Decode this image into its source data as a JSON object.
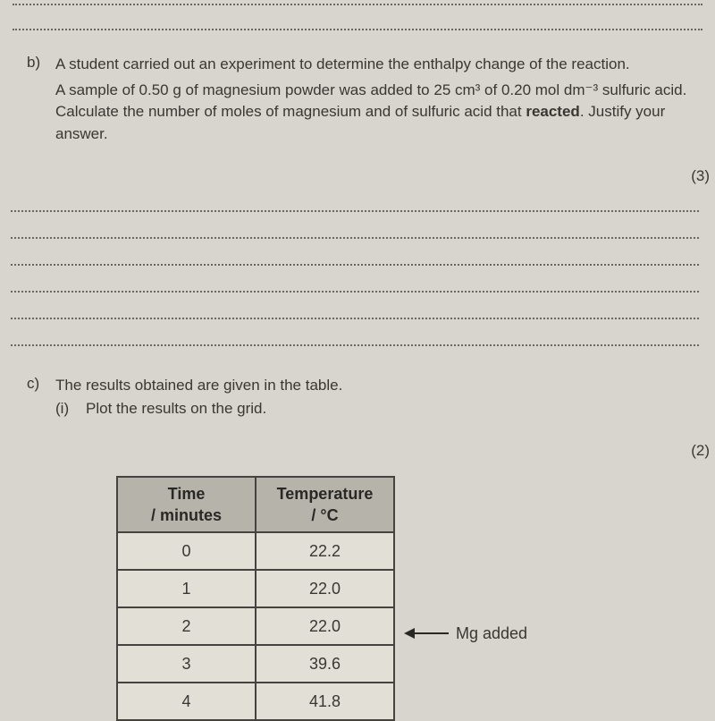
{
  "top_dotted_count": 2,
  "question_b": {
    "label": "b)",
    "line1": "A student carried out an experiment to determine the enthalpy change of the reaction.",
    "line2": "A sample of 0.50 g of magnesium powder was added to 25 cm³ of 0.20 mol dm⁻³ sulfuric acid. Calculate the number of moles of magnesium and of sulfuric acid that ",
    "bold_word": "reacted",
    "line2_end": ".",
    "line3": "Justify your answer.",
    "marks": "(3)",
    "answer_line_count": 6
  },
  "question_c": {
    "label": "c)",
    "text": "The results obtained are given in the table.",
    "sub_label": "(i)",
    "sub_text": "Plot the results on the grid.",
    "marks": "(2)"
  },
  "table": {
    "header1_line1": "Time",
    "header1_line2": "/ minutes",
    "header2_line1": "Temperature",
    "header2_line2": "/ °C",
    "rows": [
      {
        "time": "0",
        "temp": "22.2"
      },
      {
        "time": "1",
        "temp": "22.0"
      },
      {
        "time": "2",
        "temp": "22.0"
      },
      {
        "time": "3",
        "temp": "39.6"
      },
      {
        "time": "4",
        "temp": "41.8"
      }
    ],
    "annotation": "Mg added",
    "annotation_row_index": 2
  },
  "colors": {
    "background": "#d8d5ce",
    "text": "#3a3632",
    "border": "#454340",
    "table_header_bg": "#b6b3ab",
    "table_cell_bg": "#e2dfd7",
    "dotted": "#6a6560"
  }
}
